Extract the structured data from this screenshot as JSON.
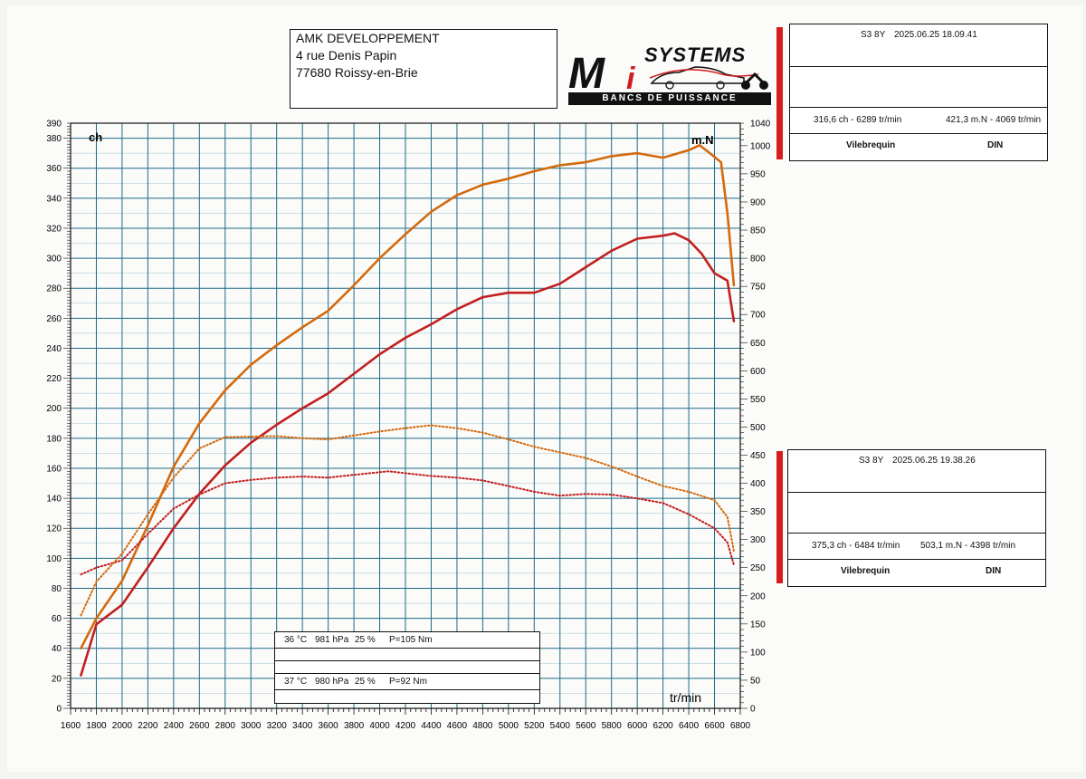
{
  "header": {
    "address_lines": [
      "AMK DEVELOPPEMENT",
      "4 rue Denis Papin",
      "77680 Roissy-en-Brie"
    ],
    "logo_letters": "M",
    "logo_i": "i",
    "logo_word": "SYSTEMS",
    "logo_tagline": "BANCS DE PUISSANCE"
  },
  "runs": [
    {
      "id": "S3 8Y",
      "datetime": "2025.06.25 18.09.41",
      "power_peak": "316,6 ch - 6289 tr/min",
      "torque_peak": "421,3 m.N - 4069 tr/min",
      "measured_at": "Vilebrequin",
      "norm": "DIN"
    },
    {
      "id": "S3 8Y",
      "datetime": "2025.06.25 19.38.26",
      "power_peak": "375,3 ch - 6484 tr/min",
      "torque_peak": "503,1 m.N - 4398 tr/min",
      "measured_at": "Vilebrequin",
      "norm": "DIN"
    }
  ],
  "conditions": [
    {
      "temp": "36 °C",
      "pressure": "981 hPa",
      "humidity": "25 %",
      "loss": "P=105 Nm"
    },
    {
      "temp": "37 °C",
      "pressure": "980 hPa",
      "humidity": "25 %",
      "loss": "P=92 Nm"
    }
  ],
  "colors": {
    "run1": "#c21f1f",
    "run2": "#d46a0d",
    "grid": "#1f6b87",
    "brand_red": "#d61c1c"
  },
  "chart_data": {
    "type": "line",
    "xlabel": "tr/min",
    "ylabel_left": "ch",
    "ylabel_right": "m.N",
    "xlim": [
      1600,
      6800
    ],
    "ylim_left": [
      0,
      390
    ],
    "ylim_right": [
      0,
      1040
    ],
    "x_ticks": [
      1600,
      1800,
      2000,
      2200,
      2400,
      2600,
      2800,
      3000,
      3200,
      3400,
      3600,
      3800,
      4000,
      4200,
      4400,
      4600,
      4800,
      5000,
      5200,
      5400,
      5600,
      5800,
      6000,
      6200,
      6400,
      6600,
      6800
    ],
    "y_ticks_left": [
      0,
      20,
      40,
      60,
      80,
      100,
      120,
      140,
      160,
      180,
      200,
      220,
      240,
      260,
      280,
      300,
      320,
      340,
      360,
      380,
      390
    ],
    "y_ticks_right": [
      0,
      50,
      100,
      150,
      200,
      250,
      300,
      350,
      400,
      450,
      500,
      550,
      600,
      650,
      700,
      750,
      800,
      850,
      900,
      950,
      1000,
      1040
    ],
    "grid": true,
    "series": [
      {
        "name": "316,6 ch",
        "axis": "left",
        "style": "solid",
        "color": "#c21f1f",
        "x": [
          1680,
          1800,
          2000,
          2200,
          2400,
          2600,
          2800,
          3000,
          3200,
          3400,
          3600,
          3800,
          4000,
          4200,
          4400,
          4600,
          4800,
          5000,
          5200,
          5400,
          5600,
          5800,
          6000,
          6200,
          6289,
          6400,
          6500,
          6600,
          6700,
          6750
        ],
        "y": [
          22,
          56,
          69,
          94,
          120,
          143,
          162,
          177,
          189,
          200,
          210,
          223,
          236,
          247,
          256,
          266,
          274,
          277,
          277,
          283,
          294,
          305,
          313,
          315,
          316.6,
          312,
          303,
          290,
          285,
          258
        ]
      },
      {
        "name": "375,3 ch",
        "axis": "left",
        "style": "solid",
        "color": "#d46a0d",
        "x": [
          1680,
          1800,
          2000,
          2200,
          2400,
          2600,
          2800,
          3000,
          3200,
          3400,
          3600,
          3800,
          4000,
          4200,
          4400,
          4600,
          4800,
          5000,
          5200,
          5400,
          5600,
          5800,
          6000,
          6200,
          6400,
          6484,
          6550,
          6650,
          6700,
          6750
        ],
        "y": [
          40,
          60,
          85,
          122,
          161,
          190,
          212,
          229,
          242,
          254,
          265,
          282,
          300,
          316,
          331,
          342,
          349,
          353,
          358,
          362,
          364,
          368,
          370,
          367,
          372,
          375.3,
          371,
          364,
          330,
          282
        ]
      },
      {
        "name": "421,3 m.N",
        "axis": "right",
        "style": "dotted",
        "color": "#c21f1f",
        "x": [
          1680,
          1800,
          2000,
          2200,
          2400,
          2600,
          2800,
          3000,
          3200,
          3400,
          3600,
          3800,
          4069,
          4200,
          4400,
          4600,
          4800,
          5000,
          5200,
          5400,
          5600,
          5800,
          6000,
          6200,
          6400,
          6600,
          6700,
          6750
        ],
        "y": [
          238,
          250,
          263,
          310,
          355,
          380,
          400,
          406,
          410,
          412,
          410,
          415,
          421.3,
          418,
          413,
          410,
          405,
          395,
          385,
          378,
          381,
          380,
          373,
          365,
          345,
          320,
          295,
          255
        ]
      },
      {
        "name": "503,1 m.N",
        "axis": "right",
        "style": "dotted",
        "color": "#d46a0d",
        "x": [
          1680,
          1800,
          2000,
          2200,
          2400,
          2600,
          2800,
          3000,
          3200,
          3400,
          3600,
          3800,
          4000,
          4200,
          4398,
          4600,
          4800,
          5000,
          5200,
          5400,
          5600,
          5800,
          6000,
          6200,
          6400,
          6600,
          6700,
          6750
        ],
        "y": [
          165,
          225,
          275,
          345,
          410,
          462,
          482,
          483,
          484,
          480,
          478,
          485,
          492,
          498,
          503.1,
          498,
          490,
          478,
          465,
          455,
          445,
          430,
          412,
          395,
          385,
          370,
          340,
          280
        ]
      }
    ]
  }
}
